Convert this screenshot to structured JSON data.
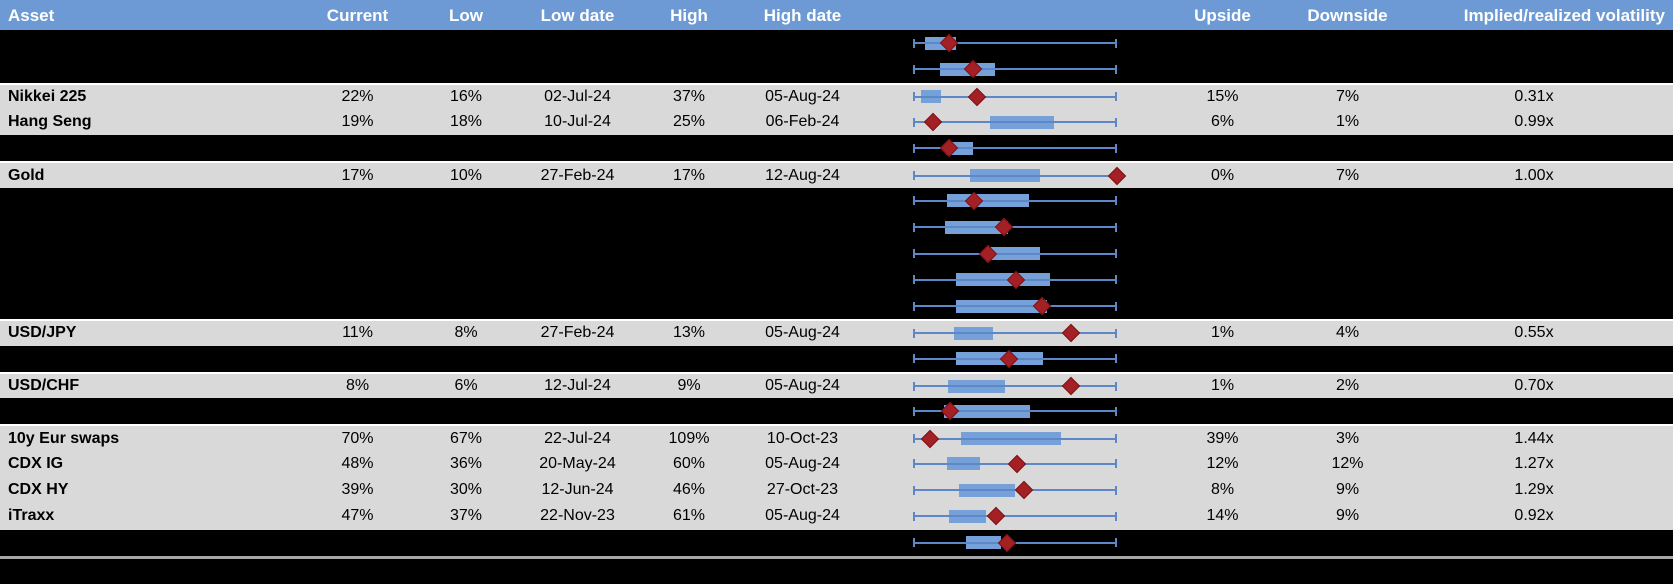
{
  "theme": {
    "header_bg": "#6D9AD4",
    "header_text": "#FFFFFF",
    "row_gray": "#D9D9D9",
    "row_black": "#000000",
    "whisker_blue": "#5C88C8",
    "box_blue": "#76A0D8",
    "marker_red": "#A32125",
    "separator_gray": "#A6A6A6"
  },
  "chart_data": {
    "type": "table",
    "description": "Implied volatility table with embedded box-whisker range plots (whisker = low/high range 0-100%, box = interquartile band, red diamond marker = current level). Rows with visible:false are blacked-out rows showing only the range plot.",
    "range_axis": {
      "min_pct": 0,
      "max_pct": 100,
      "gridlines": false,
      "tick_labels": false
    },
    "columns": [
      {
        "key": "asset",
        "label": "Asset"
      },
      {
        "key": "current",
        "label": "Current"
      },
      {
        "key": "low",
        "label": "Low"
      },
      {
        "key": "low_date",
        "label": "Low date"
      },
      {
        "key": "high",
        "label": "High"
      },
      {
        "key": "high_date",
        "label": "High date"
      },
      {
        "key": "range_plot",
        "label": ""
      },
      {
        "key": "upside",
        "label": "Upside"
      },
      {
        "key": "downside",
        "label": "Downside"
      },
      {
        "key": "ivrv",
        "label": "Implied/realized volatility"
      }
    ],
    "rows": [
      {
        "visible": false,
        "plot": {
          "box_start": 6,
          "box_end": 21,
          "marker": 17.5
        }
      },
      {
        "visible": false,
        "plot": {
          "box_start": 13,
          "box_end": 40,
          "marker": 29.5
        }
      },
      {
        "visible": true,
        "separator_top": true,
        "asset": "Nikkei 225",
        "current": "22%",
        "low": "16%",
        "low_date": "02-Jul-24",
        "high": "37%",
        "high_date": "05-Aug-24",
        "upside": "15%",
        "downside": "7%",
        "ivrv": "0.31x",
        "plot": {
          "box_start": 4,
          "box_end": 13.5,
          "marker": 31.5
        }
      },
      {
        "visible": true,
        "asset": "Hang Seng",
        "current": "19%",
        "low": "18%",
        "low_date": "10-Jul-24",
        "high": "25%",
        "high_date": "06-Feb-24",
        "upside": "6%",
        "downside": "1%",
        "ivrv": "0.99x",
        "plot": {
          "box_start": 37.5,
          "box_end": 69,
          "marker": 10
        }
      },
      {
        "visible": false,
        "plot": {
          "box_start": 16,
          "box_end": 29.5,
          "marker": 17.5
        }
      },
      {
        "visible": true,
        "separator_top": true,
        "asset": "Gold",
        "current": "17%",
        "low": "10%",
        "low_date": "27-Feb-24",
        "high": "17%",
        "high_date": "12-Aug-24",
        "upside": "0%",
        "downside": "7%",
        "ivrv": "1.00x",
        "plot": {
          "box_start": 28,
          "box_end": 62.5,
          "marker": 100
        }
      },
      {
        "visible": false,
        "plot": {
          "box_start": 16.5,
          "box_end": 57,
          "marker": 30
        }
      },
      {
        "visible": false,
        "plot": {
          "box_start": 15.5,
          "box_end": 46.5,
          "marker": 44.5
        }
      },
      {
        "visible": false,
        "plot": {
          "box_start": 38,
          "box_end": 62.5,
          "marker": 37
        }
      },
      {
        "visible": false,
        "plot": {
          "box_start": 21,
          "box_end": 67,
          "marker": 50.5
        }
      },
      {
        "visible": false,
        "plot": {
          "box_start": 21,
          "box_end": 65.5,
          "marker": 63
        }
      },
      {
        "visible": true,
        "separator_top": true,
        "asset": "USD/JPY",
        "current": "11%",
        "low": "8%",
        "low_date": "27-Feb-24",
        "high": "13%",
        "high_date": "05-Aug-24",
        "upside": "1%",
        "downside": "4%",
        "ivrv": "0.55x",
        "plot": {
          "box_start": 20,
          "box_end": 39,
          "marker": 77.5
        }
      },
      {
        "visible": false,
        "plot": {
          "box_start": 21,
          "box_end": 63.5,
          "marker": 47
        }
      },
      {
        "visible": true,
        "separator_top": true,
        "asset": "USD/CHF",
        "current": "8%",
        "low": "6%",
        "low_date": "12-Jul-24",
        "high": "9%",
        "high_date": "05-Aug-24",
        "upside": "1%",
        "downside": "2%",
        "ivrv": "0.70x",
        "plot": {
          "box_start": 17,
          "box_end": 45,
          "marker": 77.5
        }
      },
      {
        "visible": false,
        "plot": {
          "box_start": 15,
          "box_end": 57.5,
          "marker": 18
        }
      },
      {
        "visible": true,
        "separator_top": true,
        "asset": "10y Eur swaps",
        "current": "70%",
        "low": "67%",
        "low_date": "22-Jul-24",
        "high": "109%",
        "high_date": "10-Oct-23",
        "upside": "39%",
        "downside": "3%",
        "ivrv": "1.44x",
        "plot": {
          "box_start": 23.5,
          "box_end": 72.5,
          "marker": 8.5
        }
      },
      {
        "visible": true,
        "asset": "CDX IG",
        "current": "48%",
        "low": "36%",
        "low_date": "20-May-24",
        "high": "60%",
        "high_date": "05-Aug-24",
        "upside": "12%",
        "downside": "12%",
        "ivrv": "1.27x",
        "plot": {
          "box_start": 16.5,
          "box_end": 33,
          "marker": 51
        }
      },
      {
        "visible": true,
        "asset": "CDX HY",
        "current": "39%",
        "low": "30%",
        "low_date": "12-Jun-24",
        "high": "46%",
        "high_date": "27-Oct-23",
        "upside": "8%",
        "downside": "9%",
        "ivrv": "1.29x",
        "plot": {
          "box_start": 22.5,
          "box_end": 50,
          "marker": 54.5
        }
      },
      {
        "visible": true,
        "asset": "iTraxx",
        "current": "47%",
        "low": "37%",
        "low_date": "22-Nov-23",
        "high": "61%",
        "high_date": "05-Aug-24",
        "upside": "14%",
        "downside": "9%",
        "ivrv": "0.92x",
        "plot": {
          "box_start": 17.5,
          "box_end": 36,
          "marker": 40.5
        }
      },
      {
        "visible": false,
        "plot": {
          "box_start": 26,
          "box_end": 43,
          "marker": 46
        }
      }
    ]
  }
}
